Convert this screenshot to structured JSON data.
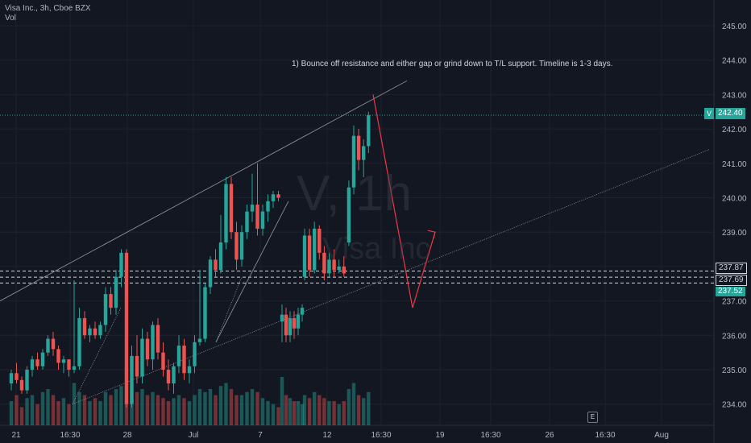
{
  "header": {
    "title": "Visa Inc., 3h, Cboe BZX",
    "vol_label": "Vol"
  },
  "watermark": {
    "symbol": "V, 1h",
    "name": "Visa Inc"
  },
  "annotation": "1) Bounce off resistance and either gap or grind down to T/L support. Timeline is 1-3 days.",
  "e_marker": "E",
  "colors": {
    "bg": "#131722",
    "up": "#26a69a",
    "down": "#ef5350",
    "axis_text": "#b2b5be",
    "grid": "#1e222d",
    "arrow": "#f23645"
  },
  "price_badges": {
    "symbol": "V",
    "last": "242.40",
    "levels": [
      "237.87",
      "237.69",
      "237.52"
    ]
  },
  "chart_data": {
    "type": "candlestick",
    "ylim": [
      233.6,
      245.5
    ],
    "yticks": [
      "245.00",
      "244.00",
      "243.00",
      "242.00",
      "241.00",
      "240.00",
      "239.00",
      "238.00",
      "237.00",
      "236.00",
      "235.00",
      "234.00"
    ],
    "xticks": [
      "21",
      "16:30",
      "28",
      "Jul",
      "7",
      "12",
      "16:30",
      "19",
      "16:30",
      "26",
      "16:30",
      "Aug"
    ],
    "horizontal_levels": [
      237.87,
      237.69,
      237.52
    ],
    "last_price": 242.4,
    "candles": [
      [
        0,
        234.6,
        235.0,
        234.4,
        234.9
      ],
      [
        1,
        234.9,
        235.2,
        234.6,
        234.7
      ],
      [
        2,
        234.7,
        234.8,
        234.3,
        234.4
      ],
      [
        3,
        234.4,
        235.1,
        234.3,
        235.0
      ],
      [
        4,
        235.0,
        235.4,
        234.8,
        235.3
      ],
      [
        5,
        235.3,
        235.5,
        235.0,
        235.1
      ],
      [
        6,
        235.1,
        235.6,
        235.0,
        235.5
      ],
      [
        7,
        235.5,
        236.0,
        235.4,
        235.9
      ],
      [
        8,
        235.9,
        236.1,
        235.4,
        235.6
      ],
      [
        9,
        235.6,
        235.7,
        235.0,
        235.2
      ],
      [
        10,
        235.2,
        235.4,
        234.9,
        235.3
      ],
      [
        11,
        235.3,
        235.3,
        234.8,
        235.0
      ],
      [
        12,
        235.0,
        237.6,
        234.9,
        235.1
      ],
      [
        13,
        235.1,
        236.8,
        235.0,
        236.5
      ],
      [
        14,
        236.5,
        236.7,
        235.9,
        236.0
      ],
      [
        15,
        236.0,
        236.3,
        235.8,
        236.2
      ],
      [
        16,
        236.2,
        236.4,
        235.9,
        236.0
      ],
      [
        17,
        236.0,
        236.4,
        235.9,
        236.3
      ],
      [
        18,
        236.3,
        237.4,
        236.1,
        237.2
      ],
      [
        19,
        237.2,
        237.4,
        236.6,
        236.8
      ],
      [
        20,
        236.8,
        237.9,
        236.6,
        237.7
      ],
      [
        21,
        237.7,
        238.5,
        237.4,
        238.4
      ],
      [
        22,
        238.4,
        238.5,
        233.9,
        234.0
      ],
      [
        23,
        234.0,
        235.7,
        233.9,
        235.4
      ],
      [
        24,
        235.4,
        236.0,
        234.6,
        234.8
      ],
      [
        25,
        234.8,
        236.2,
        234.6,
        235.9
      ],
      [
        26,
        235.9,
        236.1,
        235.1,
        235.3
      ],
      [
        27,
        235.3,
        236.4,
        235.0,
        236.3
      ],
      [
        28,
        236.3,
        236.5,
        235.3,
        235.5
      ],
      [
        29,
        235.5,
        235.8,
        234.8,
        235.0
      ],
      [
        30,
        235.0,
        235.3,
        234.4,
        234.6
      ],
      [
        31,
        234.6,
        235.2,
        234.3,
        235.1
      ],
      [
        32,
        235.1,
        236.0,
        234.9,
        235.7
      ],
      [
        33,
        235.7,
        235.9,
        234.7,
        234.9
      ],
      [
        34,
        234.9,
        235.3,
        234.6,
        235.1
      ],
      [
        35,
        235.1,
        236.0,
        234.9,
        235.8
      ],
      [
        36,
        235.8,
        237.9,
        235.7,
        235.9
      ],
      [
        37,
        235.9,
        237.5,
        235.8,
        237.4
      ],
      [
        38,
        237.4,
        238.3,
        237.2,
        238.2
      ],
      [
        39,
        238.2,
        238.5,
        237.7,
        237.9
      ],
      [
        40,
        237.9,
        239.5,
        237.8,
        238.7
      ],
      [
        41,
        238.7,
        240.6,
        238.5,
        240.4
      ],
      [
        42,
        240.4,
        240.6,
        238.8,
        239.0
      ],
      [
        43,
        239.0,
        239.3,
        237.9,
        238.2
      ],
      [
        44,
        238.2,
        239.2,
        238.0,
        239.0
      ],
      [
        45,
        239.0,
        239.8,
        238.8,
        239.6
      ],
      [
        46,
        239.6,
        240.7,
        239.3,
        239.8
      ],
      [
        47,
        239.8,
        241.0,
        238.9,
        239.1
      ],
      [
        48,
        239.1,
        239.8,
        238.9,
        239.6
      ],
      [
        49,
        239.6,
        240.1,
        239.3,
        239.9
      ],
      [
        50,
        239.9,
        240.2,
        239.7,
        240.1
      ],
      [
        51,
        240.1,
        240.2,
        239.9,
        240.0
      ],
      [
        52,
        236.4,
        236.9,
        235.8,
        236.6
      ],
      [
        53,
        236.6,
        236.8,
        235.8,
        236.0
      ],
      [
        54,
        236.0,
        236.7,
        235.8,
        236.5
      ],
      [
        55,
        236.5,
        236.7,
        235.9,
        236.2
      ],
      [
        56,
        236.2,
        236.8,
        236.0,
        236.6
      ],
      [
        57,
        236.6,
        236.9,
        236.4,
        236.8
      ],
      [
        58,
        237.7,
        239.1,
        237.6,
        238.9
      ],
      [
        59,
        238.9,
        239.1,
        237.7,
        237.9
      ],
      [
        60,
        237.9,
        239.3,
        237.8,
        239.1
      ],
      [
        61,
        239.1,
        239.2,
        238.2,
        238.4
      ],
      [
        62,
        238.4,
        238.6,
        237.6,
        237.8
      ],
      [
        63,
        237.8,
        238.4,
        237.7,
        238.2
      ],
      [
        64,
        238.2,
        238.5,
        237.7,
        237.9
      ],
      [
        65,
        237.9,
        238.2,
        237.8,
        238.0
      ],
      [
        66,
        238.0,
        238.3,
        237.7,
        237.8
      ],
      [
        67,
        238.7,
        240.5,
        238.6,
        240.3
      ],
      [
        68,
        240.3,
        242.1,
        240.1,
        241.8
      ],
      [
        69,
        241.8,
        242.0,
        240.8,
        241.1
      ],
      [
        70,
        241.1,
        241.7,
        240.6,
        241.5
      ],
      [
        71,
        241.5,
        242.5,
        241.3,
        242.4
      ]
    ],
    "volumes": [
      0.4,
      0.5,
      0.3,
      0.45,
      0.5,
      0.35,
      0.55,
      0.6,
      0.5,
      0.4,
      0.45,
      0.35,
      0.7,
      0.55,
      0.5,
      0.4,
      0.45,
      0.4,
      0.55,
      0.5,
      0.6,
      0.65,
      0.95,
      0.6,
      0.55,
      0.6,
      0.5,
      0.55,
      0.5,
      0.45,
      0.4,
      0.45,
      0.5,
      0.45,
      0.4,
      0.5,
      0.6,
      0.55,
      0.6,
      0.5,
      0.65,
      0.7,
      0.6,
      0.5,
      0.5,
      0.55,
      0.6,
      0.55,
      0.45,
      0.4,
      0.35,
      0.3,
      0.8,
      0.5,
      0.45,
      0.4,
      0.4,
      0.35,
      0.5,
      0.45,
      0.55,
      0.5,
      0.45,
      0.4,
      0.4,
      0.35,
      0.4,
      0.6,
      0.7,
      0.5,
      0.45,
      0.55
    ]
  }
}
